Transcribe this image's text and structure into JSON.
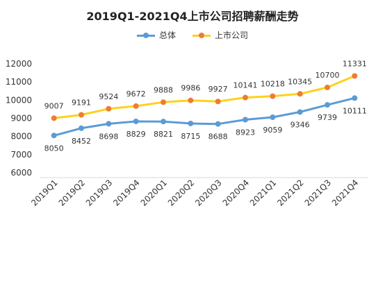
{
  "chart_data": {
    "type": "line",
    "title": "2019Q1-2021Q4上市公司招聘薪酬走势",
    "categories": [
      "2019Q1",
      "2019Q2",
      "2019Q3",
      "2019Q4",
      "2020Q1",
      "2020Q2",
      "2020Q3",
      "2020Q4",
      "2021Q1",
      "2021Q2",
      "2021Q3",
      "2021Q4"
    ],
    "series": [
      {
        "name": "总体",
        "color": "#5B9BD5",
        "label_position": "below",
        "values": [
          8050,
          8452,
          8698,
          8829,
          8821,
          8715,
          8688,
          8923,
          9059,
          9346,
          9739,
          10111
        ]
      },
      {
        "name": "上市公司",
        "color": "#FFD11A",
        "marker_color": "#ED7D31",
        "label_position": "above",
        "values": [
          9007,
          9191,
          9524,
          9672,
          9888,
          9986,
          9927,
          10141,
          10218,
          10345,
          10700,
          11331
        ]
      }
    ],
    "yticks": [
      6000,
      7000,
      8000,
      9000,
      10000,
      11000,
      12000
    ],
    "ylim": [
      6000,
      12000
    ],
    "grid": false,
    "legend_position": "top-center"
  }
}
